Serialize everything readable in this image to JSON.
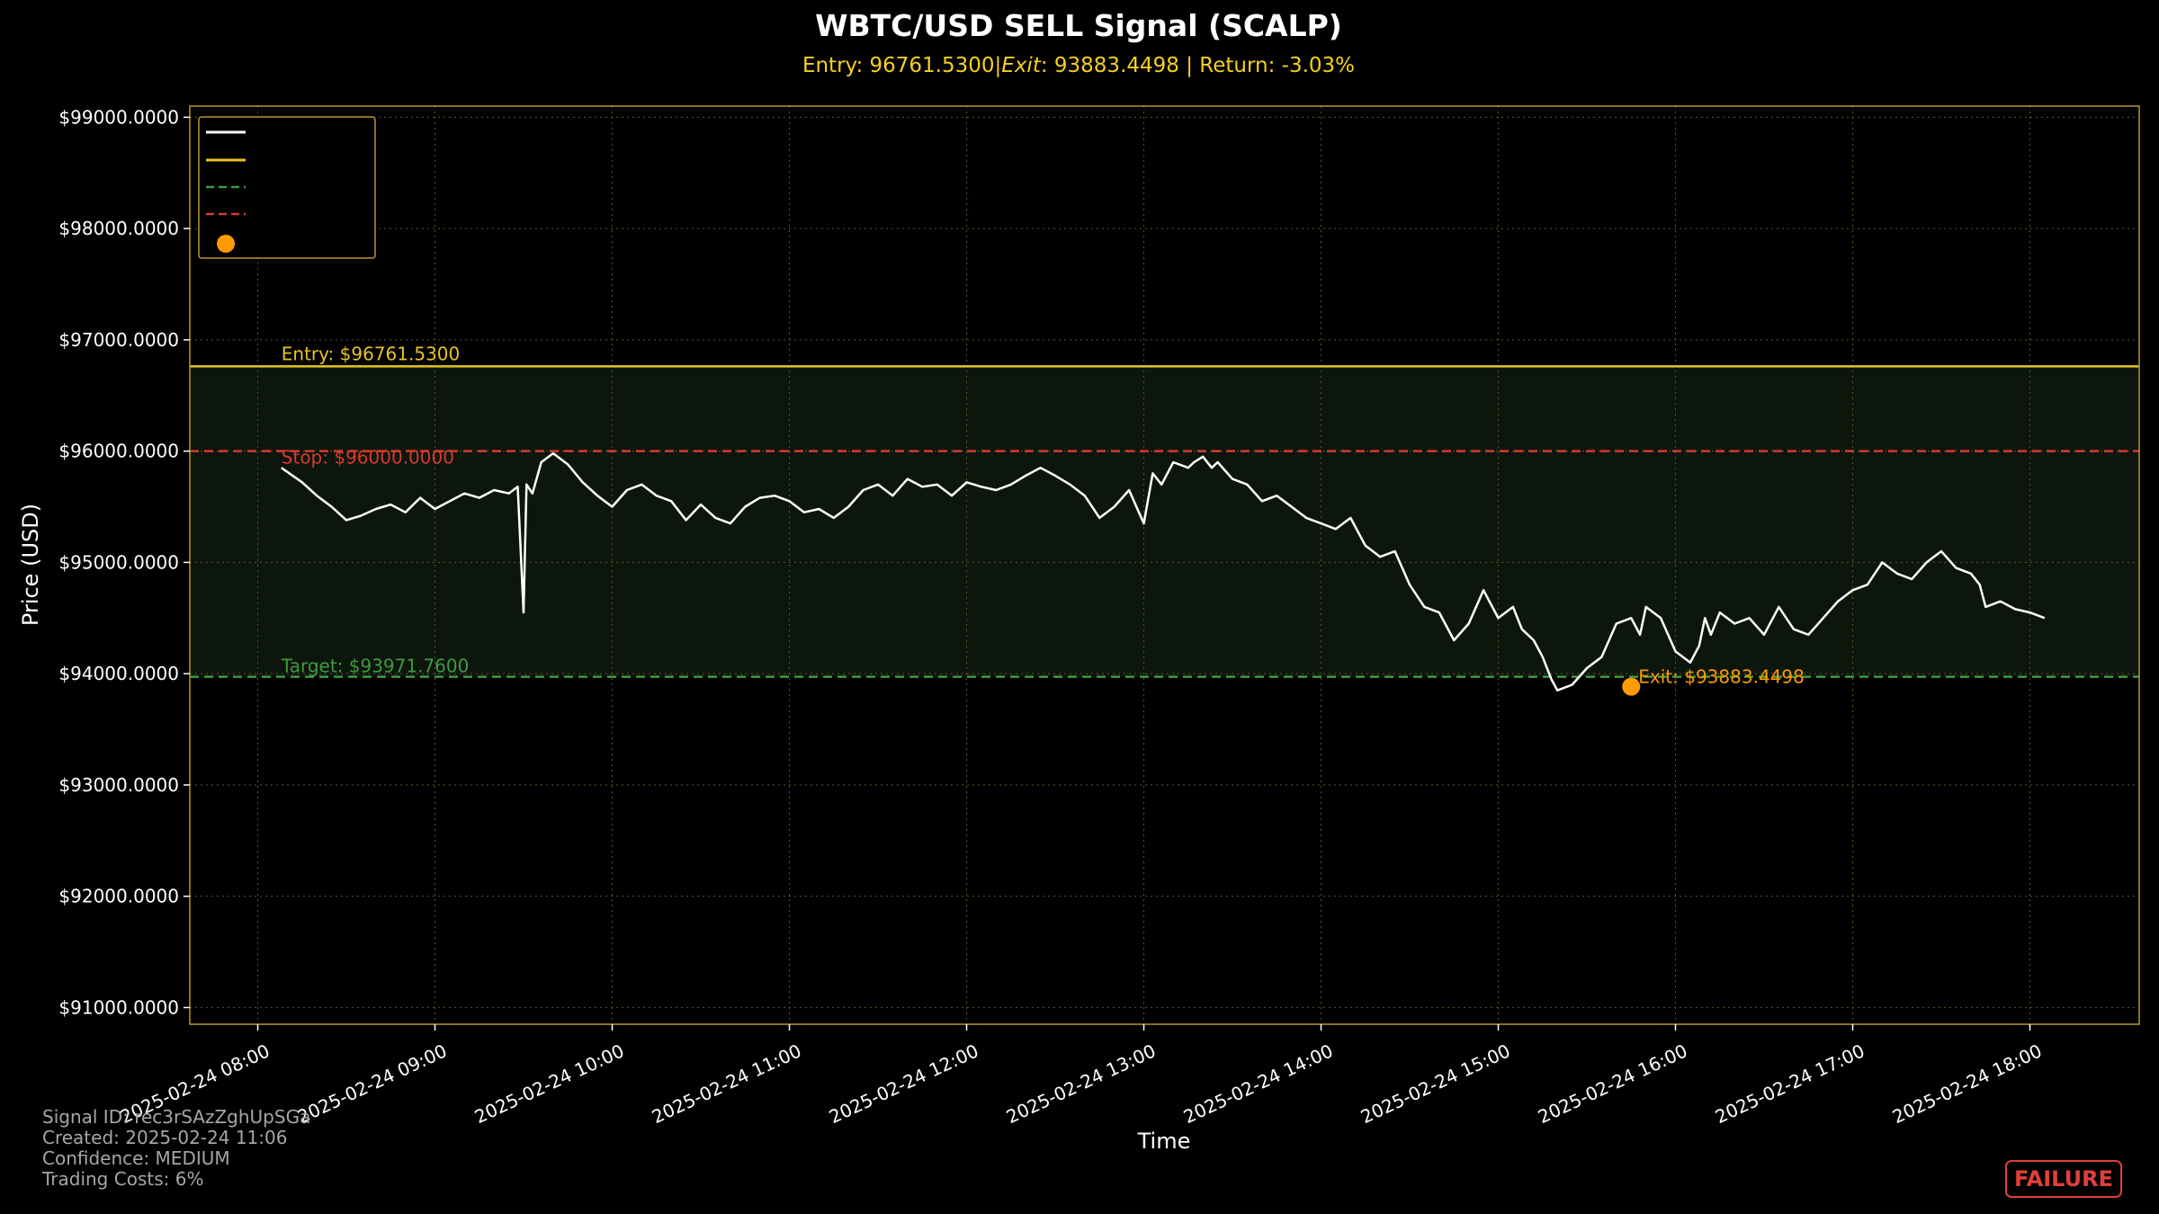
{
  "chart_data": {
    "type": "line",
    "title": "WBTC/USD SELL Signal (SCALP)",
    "subtitle": "Entry: 96761.5300|$Exit: $93883.4498 | Return: -3.03%",
    "subtitle_parts": {
      "entry": "Entry: 96761.5300|",
      "exit_label": "Exit",
      "exit_value": ": 93883.4498 | Return: -3.03%"
    },
    "xlabel": "Time",
    "ylabel": "Price (USD)",
    "ylim": [
      90850,
      99100
    ],
    "xlim": [
      "2025-02-24 07:37",
      "2025-02-24 18:37"
    ],
    "y_ticks": [
      91000,
      92000,
      93000,
      94000,
      95000,
      96000,
      97000,
      98000,
      99000
    ],
    "y_tick_labels": [
      "$91000.0000",
      "$92000.0000",
      "$93000.0000",
      "$94000.0000",
      "$95000.0000",
      "$96000.0000",
      "$97000.0000",
      "$98000.0000",
      "$99000.0000"
    ],
    "x_ticks": [
      "2025-02-24 08:00",
      "2025-02-24 09:00",
      "2025-02-24 10:00",
      "2025-02-24 11:00",
      "2025-02-24 12:00",
      "2025-02-24 13:00",
      "2025-02-24 14:00",
      "2025-02-24 15:00",
      "2025-02-24 16:00",
      "2025-02-24 17:00",
      "2025-02-24 18:00"
    ],
    "x_tick_labels": [
      "2025-02-24 08:00",
      "2025-02-24 09:00",
      "2025-02-24 10:00",
      "2025-02-24 11:00",
      "2025-02-24 12:00",
      "2025-02-24 13:00",
      "2025-02-24 14:00",
      "2025-02-24 15:00",
      "2025-02-24 16:00",
      "2025-02-24 17:00",
      "2025-02-24 18:00"
    ],
    "grid": true,
    "legend_position": "upper-left",
    "series": [
      {
        "color": "#ffffff",
        "x": [
          "2025-02-24 08:08",
          "2025-02-24 08:15",
          "2025-02-24 08:20",
          "2025-02-24 08:25",
          "2025-02-24 08:30",
          "2025-02-24 08:35",
          "2025-02-24 08:40",
          "2025-02-24 08:45",
          "2025-02-24 08:50",
          "2025-02-24 08:55",
          "2025-02-24 09:00",
          "2025-02-24 09:05",
          "2025-02-24 09:10",
          "2025-02-24 09:15",
          "2025-02-24 09:20",
          "2025-02-24 09:25",
          "2025-02-24 09:28",
          "2025-02-24 09:30",
          "2025-02-24 09:31",
          "2025-02-24 09:33",
          "2025-02-24 09:36",
          "2025-02-24 09:40",
          "2025-02-24 09:45",
          "2025-02-24 09:50",
          "2025-02-24 09:55",
          "2025-02-24 10:00",
          "2025-02-24 10:05",
          "2025-02-24 10:10",
          "2025-02-24 10:15",
          "2025-02-24 10:20",
          "2025-02-24 10:25",
          "2025-02-24 10:30",
          "2025-02-24 10:35",
          "2025-02-24 10:40",
          "2025-02-24 10:45",
          "2025-02-24 10:50",
          "2025-02-24 10:55",
          "2025-02-24 11:00",
          "2025-02-24 11:05",
          "2025-02-24 11:10",
          "2025-02-24 11:15",
          "2025-02-24 11:20",
          "2025-02-24 11:25",
          "2025-02-24 11:30",
          "2025-02-24 11:35",
          "2025-02-24 11:40",
          "2025-02-24 11:45",
          "2025-02-24 11:50",
          "2025-02-24 11:55",
          "2025-02-24 12:00",
          "2025-02-24 12:05",
          "2025-02-24 12:10",
          "2025-02-24 12:15",
          "2025-02-24 12:20",
          "2025-02-24 12:25",
          "2025-02-24 12:30",
          "2025-02-24 12:35",
          "2025-02-24 12:40",
          "2025-02-24 12:45",
          "2025-02-24 12:50",
          "2025-02-24 12:55",
          "2025-02-24 13:00",
          "2025-02-24 13:03",
          "2025-02-24 13:06",
          "2025-02-24 13:10",
          "2025-02-24 13:15",
          "2025-02-24 13:17",
          "2025-02-24 13:20",
          "2025-02-24 13:23",
          "2025-02-24 13:25",
          "2025-02-24 13:30",
          "2025-02-24 13:35",
          "2025-02-24 13:40",
          "2025-02-24 13:45",
          "2025-02-24 13:50",
          "2025-02-24 13:55",
          "2025-02-24 14:00",
          "2025-02-24 14:05",
          "2025-02-24 14:10",
          "2025-02-24 14:15",
          "2025-02-24 14:20",
          "2025-02-24 14:25",
          "2025-02-24 14:30",
          "2025-02-24 14:35",
          "2025-02-24 14:40",
          "2025-02-24 14:45",
          "2025-02-24 14:50",
          "2025-02-24 14:55",
          "2025-02-24 15:00",
          "2025-02-24 15:05",
          "2025-02-24 15:08",
          "2025-02-24 15:12",
          "2025-02-24 15:15",
          "2025-02-24 15:18",
          "2025-02-24 15:20",
          "2025-02-24 15:25",
          "2025-02-24 15:30",
          "2025-02-24 15:35",
          "2025-02-24 15:40",
          "2025-02-24 15:45",
          "2025-02-24 15:48",
          "2025-02-24 15:50",
          "2025-02-24 15:55",
          "2025-02-24 16:00",
          "2025-02-24 16:05",
          "2025-02-24 16:08",
          "2025-02-24 16:10",
          "2025-02-24 16:12",
          "2025-02-24 16:15",
          "2025-02-24 16:20",
          "2025-02-24 16:25",
          "2025-02-24 16:30",
          "2025-02-24 16:35",
          "2025-02-24 16:40",
          "2025-02-24 16:45",
          "2025-02-24 16:50",
          "2025-02-24 16:55",
          "2025-02-24 17:00",
          "2025-02-24 17:05",
          "2025-02-24 17:10",
          "2025-02-24 17:15",
          "2025-02-24 17:20",
          "2025-02-24 17:25",
          "2025-02-24 17:30",
          "2025-02-24 17:35",
          "2025-02-24 17:40",
          "2025-02-24 17:43",
          "2025-02-24 17:45",
          "2025-02-24 17:50",
          "2025-02-24 17:55",
          "2025-02-24 18:00",
          "2025-02-24 18:05"
        ],
        "y": [
          95850,
          95720,
          95600,
          95500,
          95380,
          95420,
          95480,
          95520,
          95450,
          95580,
          95480,
          95550,
          95620,
          95580,
          95650,
          95620,
          95680,
          94550,
          95700,
          95620,
          95900,
          95980,
          95880,
          95720,
          95600,
          95500,
          95650,
          95700,
          95600,
          95550,
          95380,
          95520,
          95400,
          95350,
          95500,
          95580,
          95600,
          95550,
          95450,
          95480,
          95400,
          95500,
          95650,
          95700,
          95600,
          95750,
          95680,
          95700,
          95600,
          95720,
          95680,
          95650,
          95700,
          95780,
          95850,
          95780,
          95700,
          95600,
          95400,
          95500,
          95650,
          95350,
          95800,
          95700,
          95900,
          95850,
          95900,
          95950,
          95850,
          95900,
          95750,
          95700,
          95550,
          95600,
          95500,
          95400,
          95350,
          95300,
          95400,
          95150,
          95050,
          95100,
          94800,
          94600,
          94550,
          94300,
          94450,
          94750,
          94500,
          94600,
          94400,
          94300,
          94150,
          93950,
          93850,
          93900,
          94050,
          94150,
          94450,
          94500,
          94350,
          94600,
          94500,
          94200,
          94100,
          94250,
          94500,
          94350,
          94550,
          94450,
          94500,
          94350,
          94600,
          94400,
          94350,
          94500,
          94650,
          94750,
          94800,
          95000,
          94900,
          94850,
          95000,
          95100,
          94950,
          94900,
          94800,
          94600,
          94650,
          94580,
          94550,
          94500
        ]
      }
    ],
    "legend": [
      "",
      "",
      "",
      "",
      ""
    ],
    "lines": {
      "entry": {
        "value": 96761.53,
        "label": "Entry: $96761.5300",
        "color": "#e6c229"
      },
      "stop": {
        "value": 96000.0,
        "label": "Stop: $96000.0000",
        "color": "#d63a2f"
      },
      "target": {
        "value": 93971.76,
        "label": "Target: $93971.7600",
        "color": "#3f9a3f"
      }
    },
    "exit_point": {
      "x": "2025-02-24 15:45",
      "y": 93883.4498,
      "label": "Exit: $93883.4498",
      "color": "#ff9a00"
    },
    "shaded_band": {
      "from": 93971.76,
      "to": 96761.53,
      "color": "#0d160d"
    },
    "colors": {
      "background": "#000000",
      "axes_frame": "#b8962e",
      "grid": "#5a5a28",
      "title": "#ffffff",
      "subtitle": "#f5d020",
      "failure": "#e0403a"
    }
  },
  "meta": {
    "signal_id": "Signal ID: rec3rSAzZghUpSGa",
    "created": "Created: 2025-02-24 11:06",
    "confidence": "Confidence: MEDIUM",
    "trading_costs": "Trading Costs: 6%"
  },
  "status_badge": "FAILURE"
}
